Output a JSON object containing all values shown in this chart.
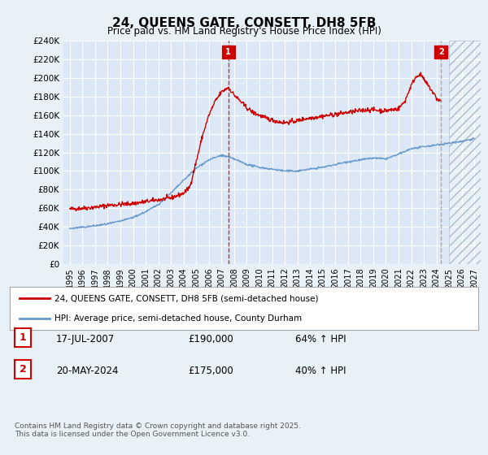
{
  "title": "24, QUEENS GATE, CONSETT, DH8 5FB",
  "subtitle": "Price paid vs. HM Land Registry's House Price Index (HPI)",
  "bg_color": "#e8f0f8",
  "plot_bg_color": "#dce8f5",
  "grid_color": "#ffffff",
  "red_color": "#cc0000",
  "blue_color": "#6699cc",
  "ylim": [
    0,
    240000
  ],
  "xlim_left": 1994.5,
  "xlim_right": 2027.5,
  "yticks": [
    0,
    20000,
    40000,
    60000,
    80000,
    100000,
    120000,
    140000,
    160000,
    180000,
    200000,
    220000,
    240000
  ],
  "ytick_labels": [
    "£0",
    "£20K",
    "£40K",
    "£60K",
    "£80K",
    "£100K",
    "£120K",
    "£140K",
    "£160K",
    "£180K",
    "£200K",
    "£220K",
    "£240K"
  ],
  "xticks": [
    1995,
    1996,
    1997,
    1998,
    1999,
    2000,
    2001,
    2002,
    2003,
    2004,
    2005,
    2006,
    2007,
    2008,
    2009,
    2010,
    2011,
    2012,
    2013,
    2014,
    2015,
    2016,
    2017,
    2018,
    2019,
    2020,
    2021,
    2022,
    2023,
    2024,
    2025,
    2026,
    2027
  ],
  "sale1_x": 2007.54,
  "sale1_y": 190000,
  "sale1_label": "1",
  "sale2_x": 2024.38,
  "sale2_y": 175000,
  "sale2_label": "2",
  "legend_line1": "24, QUEENS GATE, CONSETT, DH8 5FB (semi-detached house)",
  "legend_line2": "HPI: Average price, semi-detached house, County Durham",
  "table_row1": [
    "1",
    "17-JUL-2007",
    "£190,000",
    "64% ↑ HPI"
  ],
  "table_row2": [
    "2",
    "20-MAY-2024",
    "£175,000",
    "40% ↑ HPI"
  ],
  "footer": "Contains HM Land Registry data © Crown copyright and database right 2025.\nThis data is licensed under the Open Government Licence v3.0.",
  "hatch_start": 2025.0,
  "red_kp_x": [
    1995,
    1996,
    1997,
    1998,
    1999,
    2000,
    2001,
    2002,
    2003,
    2004,
    2004.5,
    2005,
    2005.5,
    2006,
    2006.5,
    2007,
    2007.54,
    2008,
    2008.5,
    2009,
    2009.5,
    2010,
    2010.5,
    2011,
    2011.5,
    2012,
    2012.5,
    2013,
    2013.5,
    2014,
    2014.5,
    2015,
    2015.5,
    2016,
    2016.5,
    2017,
    2017.5,
    2018,
    2018.5,
    2019,
    2019.5,
    2020,
    2020.5,
    2021,
    2021.5,
    2022,
    2022.3,
    2022.6,
    2022.9,
    2023,
    2023.3,
    2023.6,
    2023.9,
    2024,
    2024.38
  ],
  "red_kp_y": [
    59000,
    60000,
    61000,
    63000,
    64000,
    65000,
    67000,
    69000,
    71000,
    76000,
    83000,
    110000,
    138000,
    160000,
    175000,
    185000,
    190000,
    182000,
    175000,
    168000,
    163000,
    160000,
    157000,
    155000,
    153000,
    152000,
    153000,
    154000,
    156000,
    157000,
    158000,
    159000,
    160000,
    161000,
    162000,
    163000,
    164000,
    165000,
    166000,
    166000,
    165000,
    165000,
    166000,
    167000,
    175000,
    192000,
    200000,
    204000,
    202000,
    198000,
    193000,
    187000,
    181000,
    178000,
    175000
  ],
  "blue_kp_x": [
    1995,
    1996,
    1997,
    1998,
    1999,
    2000,
    2001,
    2002,
    2003,
    2004,
    2005,
    2006,
    2007,
    2008,
    2009,
    2010,
    2011,
    2012,
    2013,
    2014,
    2015,
    2016,
    2017,
    2018,
    2019,
    2020,
    2021,
    2022,
    2023,
    2024,
    2025,
    2026,
    2027
  ],
  "blue_kp_y": [
    38000,
    39500,
    41000,
    43000,
    46000,
    50000,
    56000,
    64000,
    76000,
    90000,
    103000,
    112000,
    117000,
    113000,
    107000,
    104000,
    102000,
    100000,
    100000,
    102000,
    104000,
    107000,
    110000,
    112000,
    114000,
    113000,
    118000,
    124000,
    126000,
    128000,
    130000,
    132000,
    135000
  ]
}
